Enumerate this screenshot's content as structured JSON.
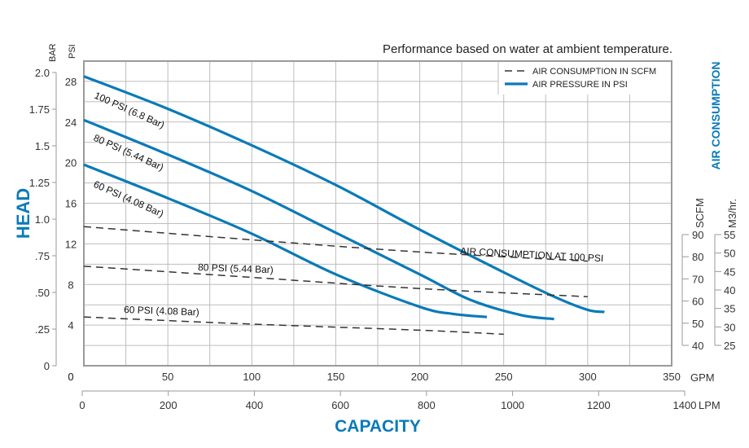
{
  "chart_data": {
    "type": "line",
    "title": "Performance based on water at ambient temperature.",
    "xlabel": "CAPACITY",
    "ylabel": "HEAD",
    "y2label": "AIR CONSUMPTION",
    "colors": {
      "pressure": "#0a7ab8",
      "consumption": "#333333",
      "axis_title": "#0a7ab8"
    },
    "x_gpm": {
      "unit": "GPM",
      "range": [
        0,
        350
      ],
      "ticks": [
        "0",
        "50",
        "100",
        "150",
        "200",
        "250",
        "300",
        "350"
      ]
    },
    "x_lpm": {
      "unit": "LPM",
      "range": [
        0,
        1400
      ],
      "ticks": [
        "0",
        "200",
        "400",
        "600",
        "800",
        "1000",
        "1200",
        "1400"
      ]
    },
    "y_psi": {
      "unit": "PSI",
      "range": [
        0,
        30
      ],
      "ticks": [
        "0",
        "4",
        "8",
        "12",
        "16",
        "20",
        "24",
        "28"
      ]
    },
    "y_bar": {
      "unit": "BAR",
      "range": [
        0,
        2.0
      ],
      "ticks": [
        "0",
        ".25",
        ".50",
        ".75",
        "1.0",
        "1.25",
        "1.5",
        "1.75",
        "2.0"
      ]
    },
    "y_scfm": {
      "unit": "SCFM",
      "range": [
        40,
        90
      ],
      "ticks": [
        "40",
        "50",
        "60",
        "70",
        "80",
        "90"
      ]
    },
    "y_m3hr": {
      "unit": "M3/hr.",
      "range": [
        25,
        55
      ],
      "ticks": [
        "25",
        "30",
        "35",
        "40",
        "45",
        "50",
        "55"
      ]
    },
    "legend": {
      "position": "top-right",
      "entries": [
        {
          "label": "AIR CONSUMPTION IN SCFM",
          "style": "dashed"
        },
        {
          "label": "AIR PRESSURE IN PSI",
          "style": "solid"
        }
      ]
    },
    "series": [
      {
        "name": "100 PSI (6.8 Bar)",
        "kind": "pressure",
        "label": "100 PSI (6.8 Bar)",
        "points": [
          [
            0,
            28.5
          ],
          [
            50,
            25.3
          ],
          [
            100,
            21.7
          ],
          [
            150,
            17.8
          ],
          [
            200,
            13.4
          ],
          [
            250,
            9.2
          ],
          [
            280,
            6.8
          ],
          [
            300,
            5.5
          ],
          [
            310,
            5.3
          ]
        ]
      },
      {
        "name": "80 PSI (5.44 Bar)",
        "kind": "pressure",
        "label": "80 PSI (5.44 Bar)",
        "points": [
          [
            0,
            24.2
          ],
          [
            50,
            20.8
          ],
          [
            100,
            17.2
          ],
          [
            150,
            13.1
          ],
          [
            200,
            9.0
          ],
          [
            230,
            6.5
          ],
          [
            260,
            5.0
          ],
          [
            280,
            4.6
          ]
        ]
      },
      {
        "name": "60 PSI (4.08 Bar)",
        "kind": "pressure",
        "label": "60 PSI (4.08 Bar)",
        "points": [
          [
            0,
            19.8
          ],
          [
            50,
            16.5
          ],
          [
            100,
            13.0
          ],
          [
            150,
            9.0
          ],
          [
            200,
            5.8
          ],
          [
            220,
            5.1
          ],
          [
            240,
            4.8
          ]
        ]
      },
      {
        "name": "Air consumption at 100 PSI",
        "kind": "consumption",
        "label": "AIR CONSUMPTION AT 100 PSI",
        "points": [
          [
            0,
            13.7
          ],
          [
            100,
            12.4
          ],
          [
            200,
            11.2
          ],
          [
            300,
            10.3
          ]
        ]
      },
      {
        "name": "Air consumption at 80 PSI",
        "kind": "consumption",
        "label": "80 PSI (5.44 Bar)",
        "points": [
          [
            0,
            9.8
          ],
          [
            100,
            8.7
          ],
          [
            200,
            7.6
          ],
          [
            300,
            6.8
          ]
        ]
      },
      {
        "name": "Air consumption at 60 PSI",
        "kind": "consumption",
        "label": "60 PSI (4.08 Bar)",
        "points": [
          [
            0,
            4.8
          ],
          [
            100,
            4.1
          ],
          [
            200,
            3.5
          ],
          [
            250,
            3.1
          ]
        ]
      }
    ],
    "grid": true
  }
}
